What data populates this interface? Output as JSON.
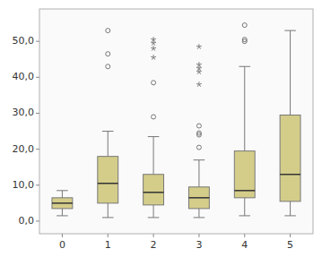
{
  "chart_data": {
    "type": "box",
    "categories": [
      0,
      1,
      2,
      3,
      4,
      5
    ],
    "boxes": [
      {
        "q1": 3.5,
        "median": 5.0,
        "q3": 6.5,
        "whisker_low": 1.5,
        "whisker_high": 8.5,
        "outliers": [],
        "far_outliers": []
      },
      {
        "q1": 5.0,
        "median": 10.5,
        "q3": 18.0,
        "whisker_low": 1.0,
        "whisker_high": 25.0,
        "outliers": [
          43.0,
          46.5,
          53.0
        ],
        "far_outliers": []
      },
      {
        "q1": 4.5,
        "median": 8.0,
        "q3": 13.0,
        "whisker_low": 1.0,
        "whisker_high": 23.5,
        "outliers": [
          29.0,
          38.5
        ],
        "far_outliers": [
          45.5,
          48.0,
          49.5,
          50.5
        ]
      },
      {
        "q1": 3.5,
        "median": 6.5,
        "q3": 9.5,
        "whisker_low": 1.0,
        "whisker_high": 17.0,
        "outliers": [
          20.5,
          24.0,
          24.5,
          26.5
        ],
        "far_outliers": [
          38.0,
          41.5,
          42.5,
          43.5,
          48.5
        ]
      },
      {
        "q1": 6.5,
        "median": 8.5,
        "q3": 19.5,
        "whisker_low": 1.5,
        "whisker_high": 43.0,
        "outliers": [
          50.0,
          50.5,
          54.5
        ],
        "far_outliers": []
      },
      {
        "q1": 5.5,
        "median": 13.0,
        "q3": 29.5,
        "whisker_low": 1.5,
        "whisker_high": 53.0,
        "outliers": [],
        "far_outliers": []
      }
    ],
    "color": "#d4cd8a",
    "ylim": [
      -3.5,
      59
    ],
    "yticks": [
      {
        "value": 0.0,
        "label": "0,0"
      },
      {
        "value": 10.0,
        "label": "10,0"
      },
      {
        "value": 20.0,
        "label": "20,0"
      },
      {
        "value": 30.0,
        "label": "30,0"
      },
      {
        "value": 40.0,
        "label": "40,0"
      },
      {
        "value": 50.0,
        "label": "50,0"
      }
    ],
    "grid": false
  }
}
